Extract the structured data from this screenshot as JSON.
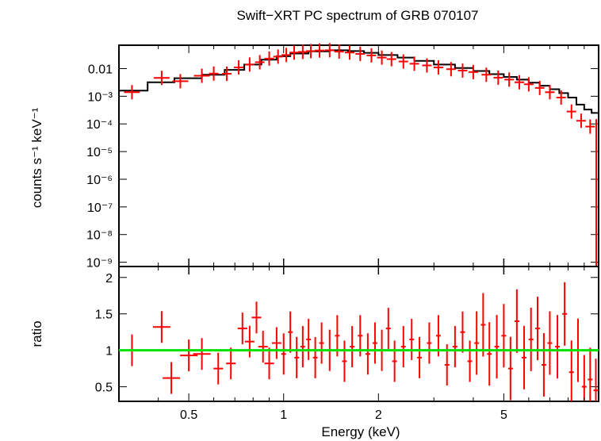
{
  "chart_data": [
    {
      "type": "scatter",
      "title": "Swift−XRT PC spectrum of GRB 070107",
      "xlabel": "Energy (keV)",
      "ylabel": "counts s⁻¹ keV⁻¹",
      "x_scale": "log",
      "y_scale": "log",
      "xlim": [
        0.3,
        10
      ],
      "ylim": [
        7e-10,
        0.07
      ],
      "y_ticks": [
        {
          "value": 0.01,
          "label": "0.01"
        },
        {
          "value": 0.001,
          "label": "10⁻³"
        },
        {
          "value": 0.0001,
          "label": "10⁻⁴"
        },
        {
          "value": 1e-05,
          "label": "10⁻⁵"
        },
        {
          "value": 1e-06,
          "label": "10⁻⁶"
        },
        {
          "value": 1e-07,
          "label": "10⁻⁷"
        },
        {
          "value": 1e-08,
          "label": "10⁻⁸"
        },
        {
          "value": 1e-09,
          "label": "10⁻⁹"
        }
      ],
      "colors": {
        "data": "#ff0000",
        "model": "#000000"
      },
      "series": [
        {
          "kind": "data",
          "x": [
            0.33,
            0.41,
            0.47,
            0.55,
            0.6,
            0.66,
            0.72,
            0.78,
            0.84,
            0.9,
            0.96,
            1.02,
            1.08,
            1.15,
            1.22,
            1.3,
            1.4,
            1.5,
            1.62,
            1.75,
            1.9,
            2.05,
            2.2,
            2.4,
            2.6,
            2.85,
            3.1,
            3.4,
            3.7,
            4.0,
            4.4,
            4.8,
            5.2,
            5.6,
            6.0,
            6.5,
            7.0,
            7.6,
            8.2,
            8.8,
            9.4
          ],
          "y": [
            0.0014,
            0.0046,
            0.0035,
            0.0055,
            0.0066,
            0.0065,
            0.011,
            0.014,
            0.017,
            0.023,
            0.027,
            0.031,
            0.038,
            0.04,
            0.043,
            0.045,
            0.046,
            0.041,
            0.038,
            0.034,
            0.03,
            0.025,
            0.022,
            0.018,
            0.015,
            0.013,
            0.011,
            0.0095,
            0.0085,
            0.0075,
            0.006,
            0.0047,
            0.004,
            0.0032,
            0.0027,
            0.002,
            0.0014,
            0.0009,
            0.00028,
            0.00013,
            8e-05
          ]
        },
        {
          "kind": "model",
          "x": [
            0.3,
            0.37,
            0.45,
            0.55,
            0.65,
            0.75,
            0.85,
            0.95,
            1.05,
            1.2,
            1.4,
            1.6,
            1.8,
            2.0,
            2.3,
            2.6,
            3.0,
            3.5,
            4.0,
            4.5,
            5.0,
            5.5,
            6.0,
            6.5,
            7.0,
            7.5,
            8.0,
            8.5,
            9.0,
            9.5,
            10.0
          ],
          "y": [
            0.0016,
            0.0032,
            0.0045,
            0.006,
            0.009,
            0.014,
            0.021,
            0.028,
            0.035,
            0.042,
            0.046,
            0.043,
            0.037,
            0.031,
            0.025,
            0.019,
            0.014,
            0.0105,
            0.0082,
            0.0063,
            0.005,
            0.004,
            0.0031,
            0.0024,
            0.0018,
            0.0013,
            0.0009,
            0.0005,
            0.00033,
            0.00025,
            0.00022
          ]
        }
      ]
    },
    {
      "type": "scatter",
      "xlabel": "Energy (keV)",
      "ylabel": "ratio",
      "x_scale": "log",
      "xlim": [
        0.3,
        10
      ],
      "ylim": [
        0.3,
        2.15
      ],
      "x_ticks": [
        {
          "value": 0.5,
          "label": "0.5"
        },
        {
          "value": 1,
          "label": "1"
        },
        {
          "value": 2,
          "label": "2"
        },
        {
          "value": 5,
          "label": "5"
        }
      ],
      "y_ticks": [
        {
          "value": 0.5,
          "label": "0.5"
        },
        {
          "value": 1,
          "label": "1"
        },
        {
          "value": 1.5,
          "label": "1.5"
        },
        {
          "value": 2,
          "label": "2"
        }
      ],
      "reference_line": 1,
      "colors": {
        "data": "#ff0000",
        "reference": "#00e000"
      },
      "series": [
        {
          "kind": "data",
          "x": [
            0.33,
            0.41,
            0.44,
            0.5,
            0.55,
            0.62,
            0.68,
            0.74,
            0.78,
            0.82,
            0.86,
            0.9,
            0.95,
            1.0,
            1.05,
            1.1,
            1.15,
            1.2,
            1.26,
            1.32,
            1.4,
            1.48,
            1.56,
            1.65,
            1.75,
            1.85,
            1.95,
            2.05,
            2.15,
            2.25,
            2.4,
            2.55,
            2.7,
            2.9,
            3.1,
            3.3,
            3.5,
            3.7,
            3.9,
            4.1,
            4.3,
            4.5,
            4.75,
            5.0,
            5.25,
            5.5,
            5.8,
            6.1,
            6.4,
            6.7,
            7.0,
            7.4,
            7.8,
            8.2,
            8.6,
            9.0,
            9.4,
            9.8
          ],
          "y": [
            1.0,
            1.32,
            0.62,
            0.93,
            0.95,
            0.75,
            0.82,
            1.3,
            1.12,
            1.45,
            1.05,
            0.82,
            1.1,
            0.95,
            1.25,
            0.9,
            1.05,
            1.15,
            0.9,
            1.1,
            1.0,
            1.2,
            0.85,
            1.05,
            1.2,
            0.95,
            1.1,
            1.0,
            1.3,
            0.85,
            1.05,
            1.15,
            0.9,
            1.1,
            1.2,
            0.8,
            1.05,
            1.25,
            0.85,
            1.1,
            1.35,
            0.95,
            1.05,
            1.2,
            0.75,
            1.4,
            0.9,
            1.15,
            1.3,
            0.8,
            1.1,
            1.05,
            1.5,
            0.7,
            1.0,
            0.5,
            0.6,
            0.45
          ]
        }
      ]
    }
  ]
}
